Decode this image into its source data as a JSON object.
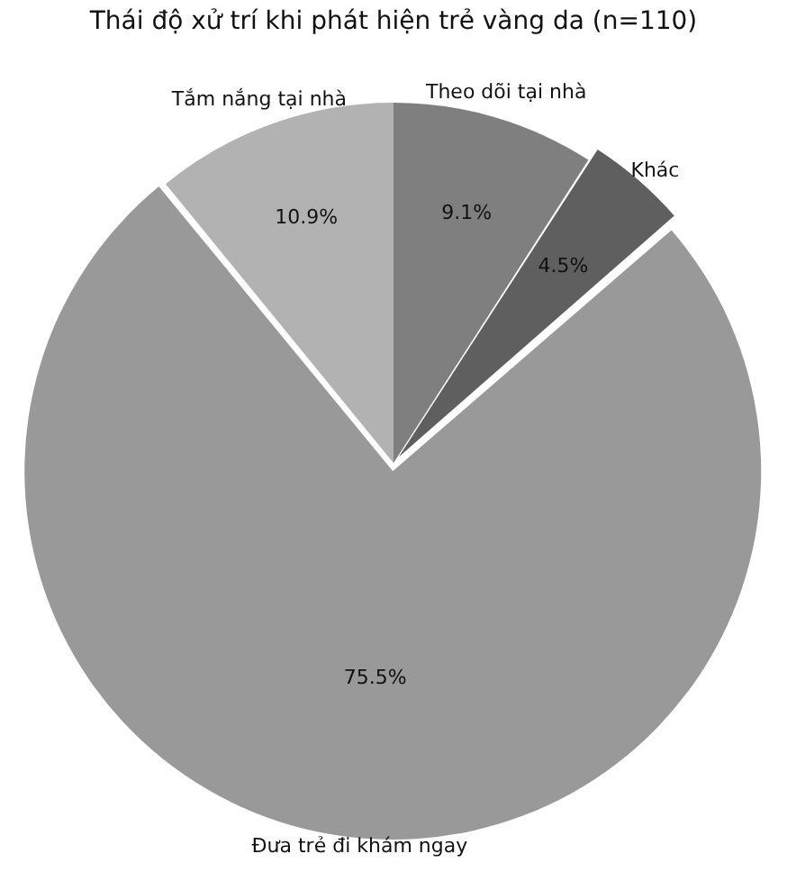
{
  "chart_data": {
    "type": "pie",
    "title": "Thái độ xử trí khi phát hiện trẻ vàng da (n=110)",
    "categories": [
      "Theo dõi tại nhà",
      "Khác",
      "Đưa trẻ đi khám ngay",
      "Tắm nắng tại nhà"
    ],
    "values": [
      9.1,
      4.5,
      75.5,
      10.9
    ],
    "value_labels": [
      "9.1%",
      "4.5%",
      "75.5%",
      "10.9%"
    ],
    "colors": [
      "#7f7f7f",
      "#5f5f5f",
      "#999999",
      "#b2b2b2"
    ],
    "legend": false
  }
}
